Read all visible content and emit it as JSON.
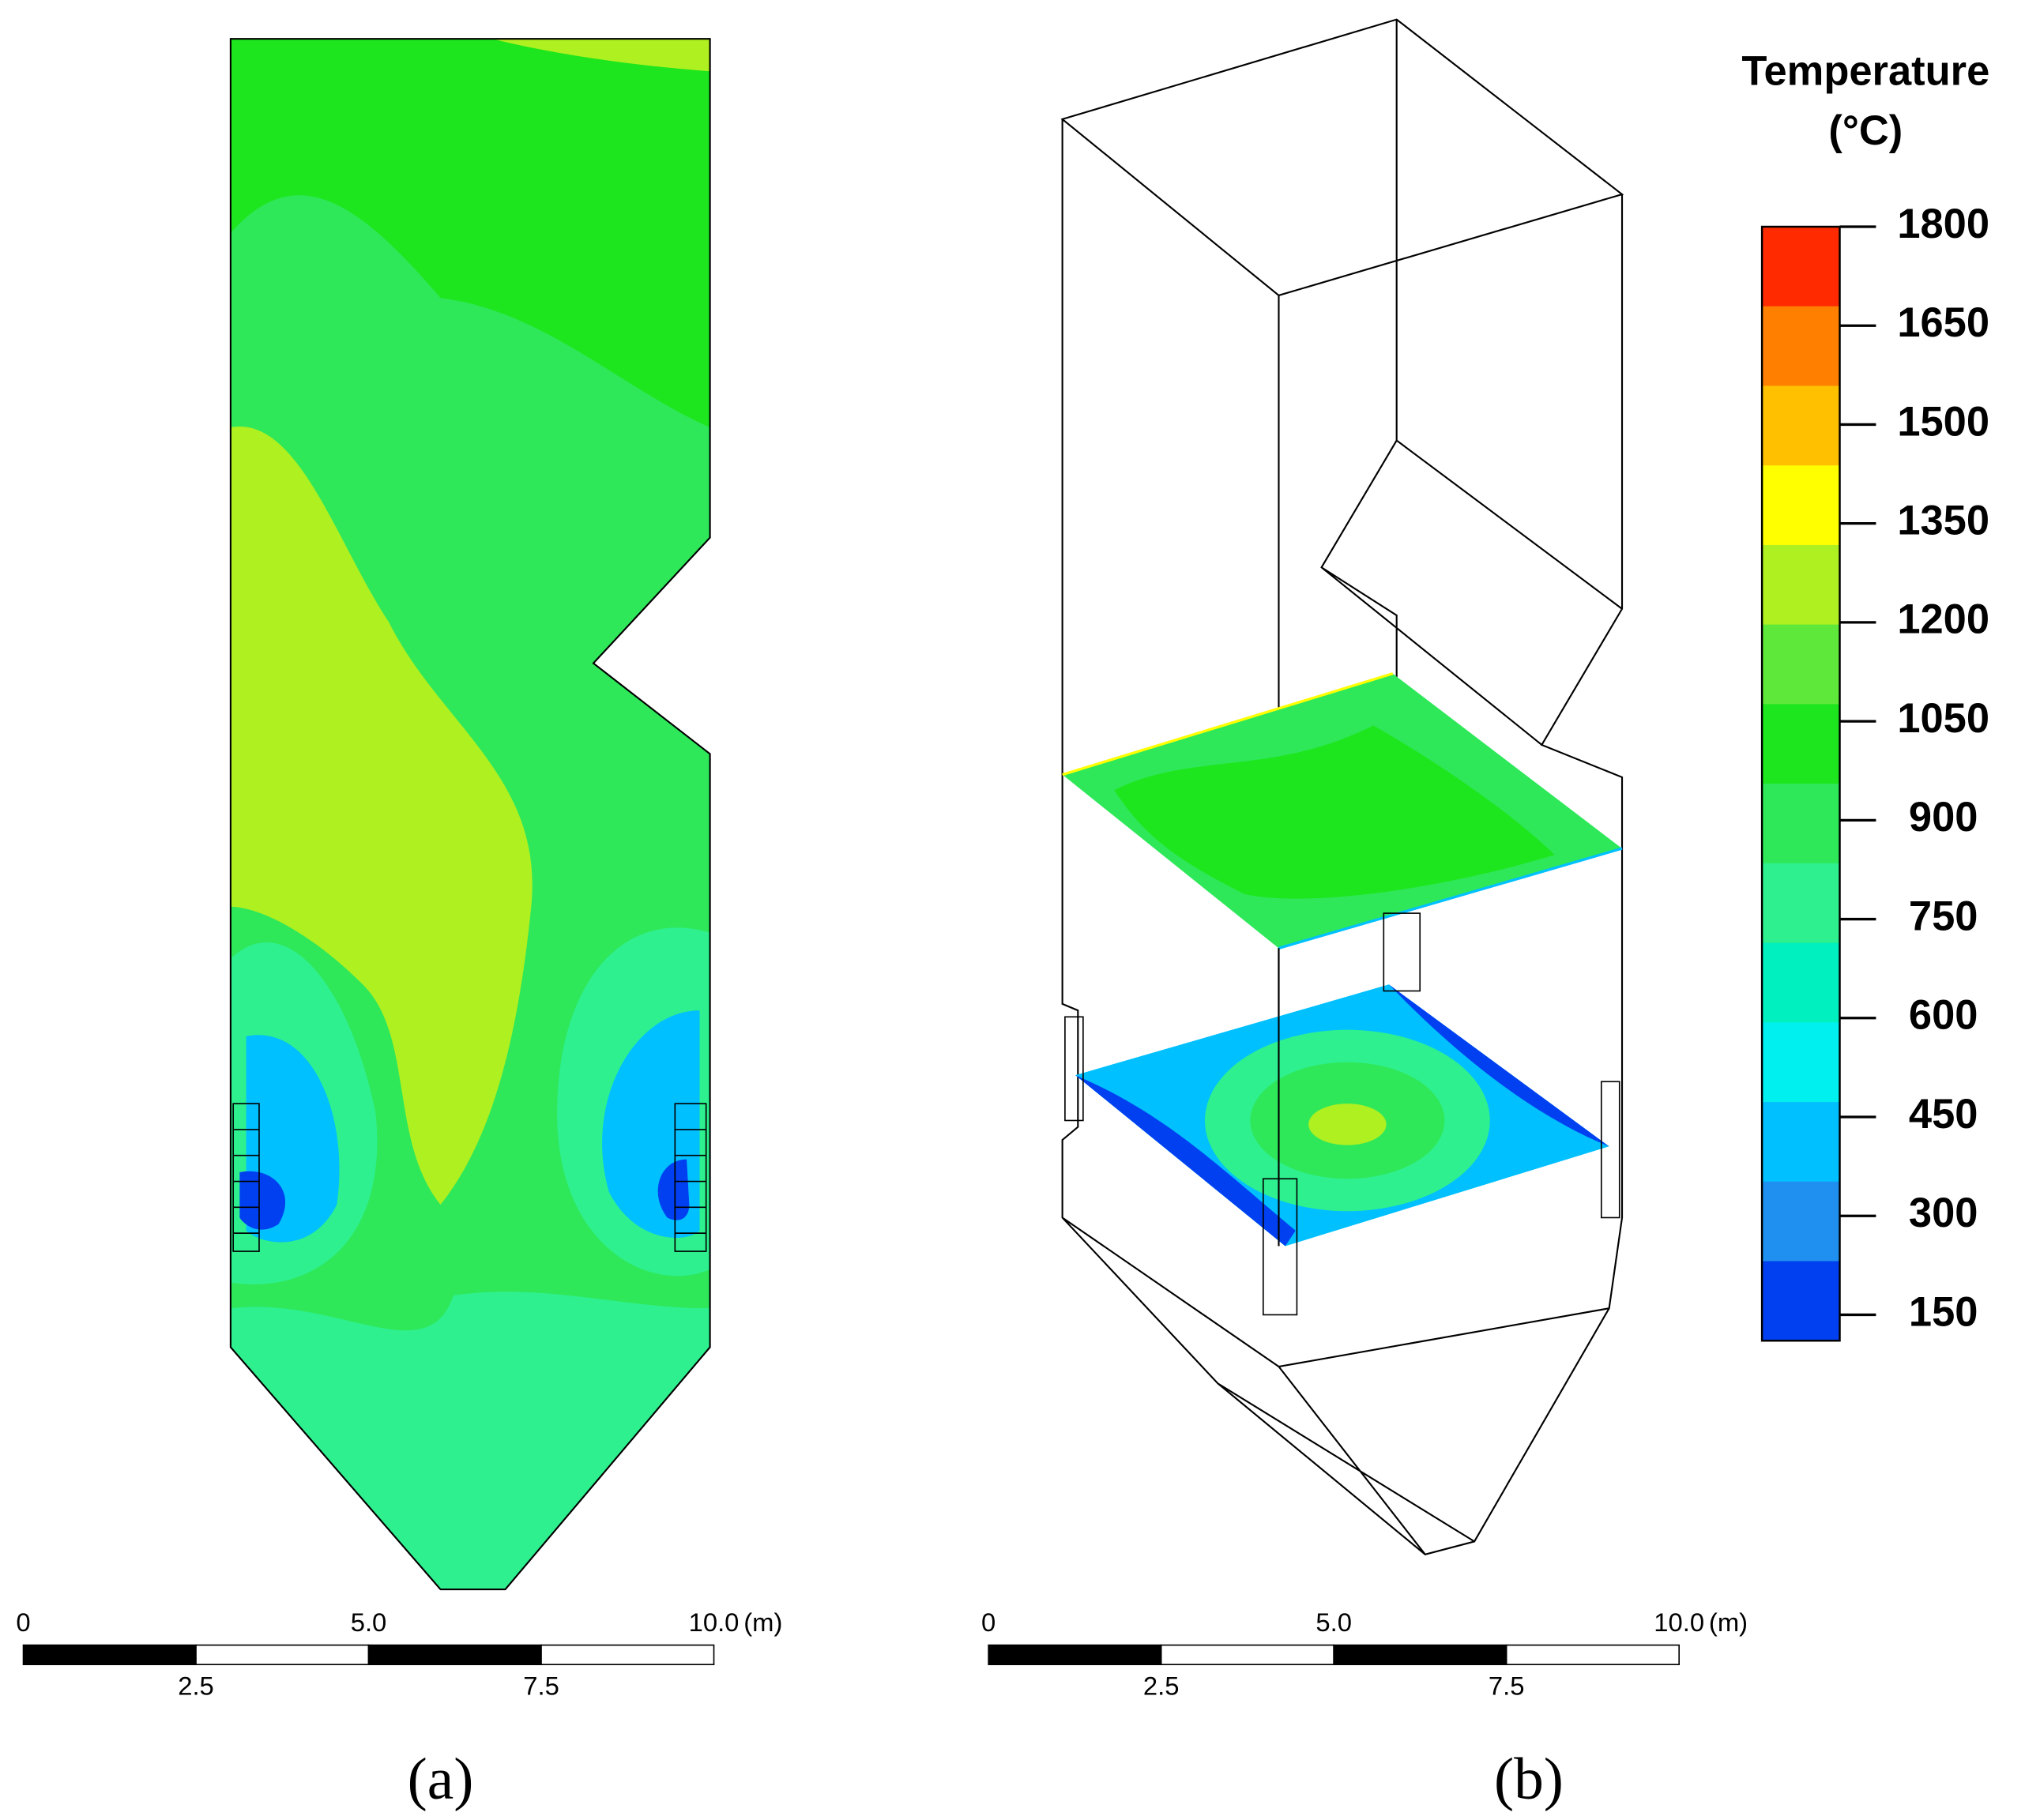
{
  "colorbar": {
    "title": "Temperature",
    "unit": "(°C)",
    "ticks": [
      1800,
      1650,
      1500,
      1350,
      1200,
      1050,
      900,
      750,
      600,
      450,
      300,
      150
    ],
    "colors": [
      "#ff2a00",
      "#ff8000",
      "#ffc000",
      "#ffff00",
      "#aef020",
      "#5ee83a",
      "#1ee61e",
      "#2ee85a",
      "#2ef08e",
      "#00f0c0",
      "#00f0f0",
      "#00c0ff",
      "#2090f0",
      "#0040f0"
    ]
  },
  "scale_bars": [
    {
      "top_labels": [
        "0",
        "5.0",
        "10.0"
      ],
      "bottom_labels": [
        "2.5",
        "7.5"
      ],
      "unit": "(m)"
    },
    {
      "top_labels": [
        "0",
        "5.0",
        "10.0"
      ],
      "bottom_labels": [
        "2.5",
        "7.5"
      ],
      "unit": "(m)"
    }
  ],
  "panels": [
    {
      "label": "(a)"
    },
    {
      "label": "(b)"
    }
  ]
}
